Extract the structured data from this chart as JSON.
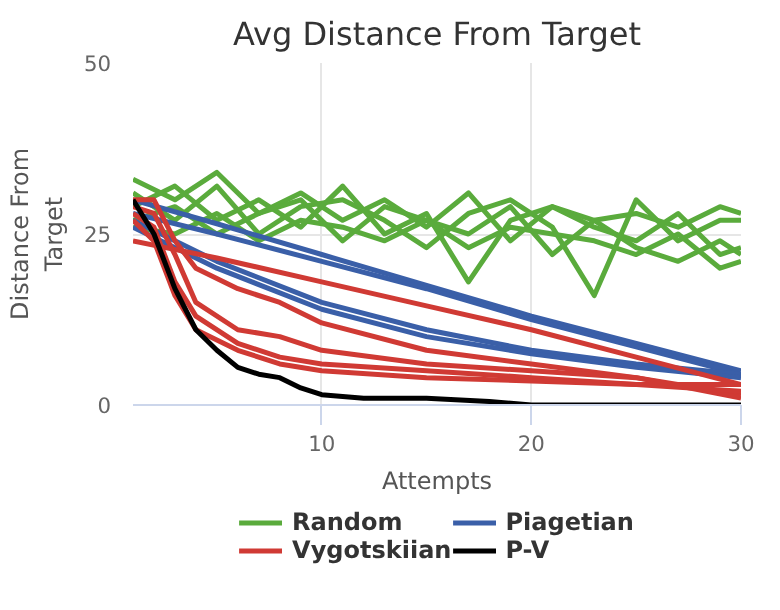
{
  "chart_data": {
    "type": "line",
    "title": "Avg Distance From Target",
    "xlabel": "Attempts",
    "ylabel": "Distance From Target",
    "xlim": [
      1,
      30
    ],
    "xticks": [
      10,
      20,
      30
    ],
    "ylim": [
      0,
      50
    ],
    "yticks": [
      0,
      25,
      50
    ],
    "grid": true,
    "legend": "bottom",
    "marker": "none",
    "line_style": "solid",
    "series": [
      {
        "name": "Random",
        "color": "#5aab3c",
        "x": [
          1,
          3,
          5,
          7,
          9,
          11,
          13,
          15,
          17,
          19,
          21,
          23,
          25,
          27,
          29,
          30
        ],
        "values": [
          33,
          30,
          34,
          28,
          31,
          27,
          30,
          26,
          31,
          24,
          29,
          27,
          28,
          26,
          29,
          28
        ]
      },
      {
        "color": "#5aab3c",
        "x": [
          1,
          3,
          5,
          7,
          9,
          11,
          13,
          15,
          17,
          19,
          21,
          23,
          25,
          27,
          29,
          30
        ],
        "values": [
          31,
          27,
          32,
          25,
          29,
          30,
          27,
          23,
          28,
          30,
          26,
          16,
          30,
          24,
          27,
          27
        ]
      },
      {
        "color": "#5aab3c",
        "x": [
          1,
          3,
          5,
          7,
          9,
          11,
          13,
          15,
          17,
          19,
          21,
          23,
          25,
          27,
          29,
          30
        ],
        "values": [
          29,
          32,
          27,
          30,
          26,
          32,
          25,
          28,
          18,
          27,
          29,
          26,
          24,
          28,
          22,
          23
        ]
      },
      {
        "color": "#5aab3c",
        "x": [
          1,
          3,
          5,
          7,
          9,
          11,
          13,
          15,
          17,
          19,
          21,
          23,
          25,
          27,
          29,
          30
        ],
        "values": [
          27,
          29,
          25,
          28,
          30,
          24,
          29,
          27,
          25,
          29,
          22,
          27,
          23,
          21,
          24,
          22
        ]
      },
      {
        "color": "#5aab3c",
        "x": [
          1,
          3,
          5,
          7,
          9,
          11,
          13,
          15,
          17,
          19,
          21,
          23,
          25,
          27,
          29,
          30
        ],
        "values": [
          26,
          25,
          28,
          24,
          27,
          26,
          24,
          27,
          23,
          26,
          25,
          24,
          22,
          25,
          20,
          21
        ]
      },
      {
        "name": "Piagetian",
        "color": "#3a5fa8",
        "x": [
          1,
          5,
          10,
          15,
          20,
          25,
          30
        ],
        "values": [
          30,
          26.5,
          22,
          17.5,
          13,
          9,
          5
        ]
      },
      {
        "color": "#3a5fa8",
        "x": [
          1,
          5,
          10,
          15,
          20,
          25,
          30
        ],
        "values": [
          28,
          25,
          21,
          17,
          12.5,
          8.5,
          4.5
        ]
      },
      {
        "color": "#3a5fa8",
        "x": [
          1,
          5,
          10,
          15,
          20,
          25,
          30
        ],
        "values": [
          27,
          21,
          15,
          11,
          8,
          6,
          4.5
        ]
      },
      {
        "color": "#3a5fa8",
        "x": [
          1,
          5,
          10,
          15,
          20,
          25,
          30
        ],
        "values": [
          26,
          20,
          14,
          10,
          7.5,
          5.5,
          4
        ]
      },
      {
        "name": "Vygotskiian",
        "color": "#d03a34",
        "x": [
          1,
          5,
          10,
          15,
          20,
          25,
          30
        ],
        "values": [
          24,
          21.5,
          18,
          14.5,
          11,
          7,
          3
        ]
      },
      {
        "color": "#d03a34",
        "x": [
          1,
          2,
          3,
          4,
          6,
          8,
          10,
          15,
          20,
          25,
          30
        ],
        "values": [
          30,
          30,
          24,
          20,
          17,
          15,
          12,
          8,
          6,
          4,
          1.5
        ]
      },
      {
        "color": "#d03a34",
        "x": [
          1,
          2,
          3,
          4,
          6,
          8,
          10,
          15,
          20,
          25,
          30
        ],
        "values": [
          29,
          28,
          22,
          15,
          11,
          10,
          8,
          6,
          5,
          4,
          1
        ]
      },
      {
        "color": "#d03a34",
        "x": [
          1,
          2,
          3,
          4,
          6,
          8,
          10,
          15,
          20,
          25,
          30
        ],
        "values": [
          28,
          26,
          18,
          13,
          9,
          7,
          6,
          5,
          4,
          3,
          2
        ]
      },
      {
        "color": "#d03a34",
        "x": [
          1,
          2,
          3,
          4,
          6,
          8,
          10,
          15,
          20,
          25,
          30
        ],
        "values": [
          27,
          24,
          16,
          11,
          8,
          6,
          5,
          4,
          3.5,
          3,
          3
        ]
      },
      {
        "name": "P-V",
        "color": "#000000",
        "x": [
          1,
          2,
          3,
          4,
          5,
          6,
          7,
          8,
          9,
          10,
          12,
          15,
          18,
          20,
          25,
          30
        ],
        "values": [
          30,
          25,
          17,
          11,
          8,
          5.5,
          4.5,
          4,
          2.5,
          1.5,
          1,
          1,
          0.5,
          0,
          0,
          0
        ]
      }
    ]
  }
}
